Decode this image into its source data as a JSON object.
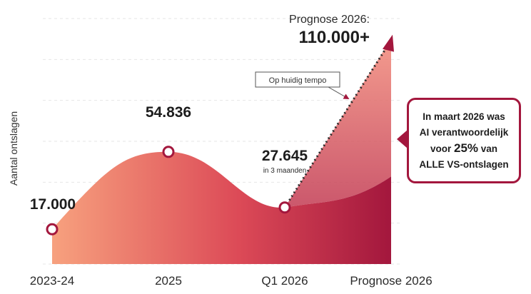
{
  "chart_data": {
    "type": "area",
    "ylabel": "Aantal ontslagen",
    "categories": [
      "2023-24",
      "2025",
      "Q1 2026",
      "Prognose 2026"
    ],
    "values": [
      17000,
      54836,
      27645,
      110000
    ],
    "data_labels": [
      "17.000",
      "54.836",
      "27.645",
      ""
    ],
    "data_sublabels": [
      "",
      "",
      "in 3 maanden",
      ""
    ],
    "forecast": {
      "label": "Prognose 2026:",
      "value_label": "110.000+",
      "tempo_label": "Op huidig tempo"
    },
    "ylim": [
      0,
      120000
    ],
    "grid": true,
    "colors": {
      "start": "#f7a17e",
      "mid": "#dc4a57",
      "end": "#a3173d",
      "forecast": "#e8646d",
      "marker": "#a3173d"
    }
  },
  "callout": {
    "line1": "In maart 2026 was",
    "line2": "AI verantwoordelijk",
    "line3_pre": "voor ",
    "line3_big": "25%",
    "line3_post": " van",
    "line4": "ALLE VS-ontslagen"
  }
}
